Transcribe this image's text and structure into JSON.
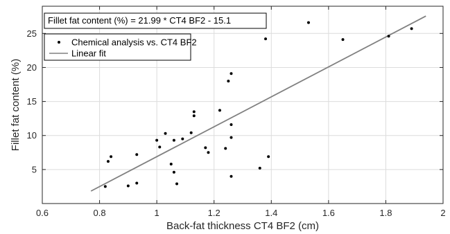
{
  "chart_data": {
    "type": "scatter",
    "title": "",
    "xlabel": "Back-fat thickness CT4 BF2 (cm)",
    "ylabel": "Fillet fat content (%)",
    "xlim": [
      0.6,
      2.0
    ],
    "ylim": [
      0,
      29
    ],
    "xticks": [
      0.6,
      0.8,
      1.0,
      1.2,
      1.4,
      1.6,
      1.8,
      2.0
    ],
    "xtick_labels": [
      "0.6",
      "0.8",
      "1",
      "1.2",
      "1.4",
      "1.6",
      "1.8",
      "2"
    ],
    "yticks": [
      5,
      10,
      15,
      20,
      25
    ],
    "ytick_labels": [
      "5",
      "10",
      "15",
      "20",
      "25"
    ],
    "grid": true,
    "legend_position": "top-left",
    "annotation": "Fillet fat content (%) = 21.99 * CT4 BF2 - 15.1",
    "series": [
      {
        "name": "Chemical analysis vs. CT4 BF2",
        "kind": "scatter",
        "color": "#000000",
        "points": [
          [
            0.82,
            2.5
          ],
          [
            0.83,
            6.2
          ],
          [
            0.84,
            6.9
          ],
          [
            0.9,
            2.6
          ],
          [
            0.93,
            3.0
          ],
          [
            0.93,
            7.2
          ],
          [
            1.0,
            9.3
          ],
          [
            1.01,
            8.3
          ],
          [
            1.03,
            10.3
          ],
          [
            1.05,
            5.8
          ],
          [
            1.06,
            4.6
          ],
          [
            1.06,
            9.3
          ],
          [
            1.07,
            2.9
          ],
          [
            1.09,
            9.5
          ],
          [
            1.12,
            10.4
          ],
          [
            1.13,
            12.9
          ],
          [
            1.13,
            13.5
          ],
          [
            1.17,
            8.2
          ],
          [
            1.18,
            7.5
          ],
          [
            1.22,
            13.7
          ],
          [
            1.24,
            8.1
          ],
          [
            1.25,
            18.0
          ],
          [
            1.26,
            19.1
          ],
          [
            1.26,
            11.6
          ],
          [
            1.26,
            9.7
          ],
          [
            1.26,
            4.0
          ],
          [
            1.36,
            5.2
          ],
          [
            1.38,
            24.2
          ],
          [
            1.39,
            6.9
          ],
          [
            1.53,
            26.6
          ],
          [
            1.65,
            24.1
          ],
          [
            1.81,
            24.6
          ],
          [
            1.89,
            25.7
          ]
        ]
      },
      {
        "name": "Linear fit",
        "kind": "line",
        "color": "#808080",
        "slope": 21.99,
        "intercept": -15.1,
        "x_range": [
          0.77,
          1.94
        ]
      }
    ]
  }
}
